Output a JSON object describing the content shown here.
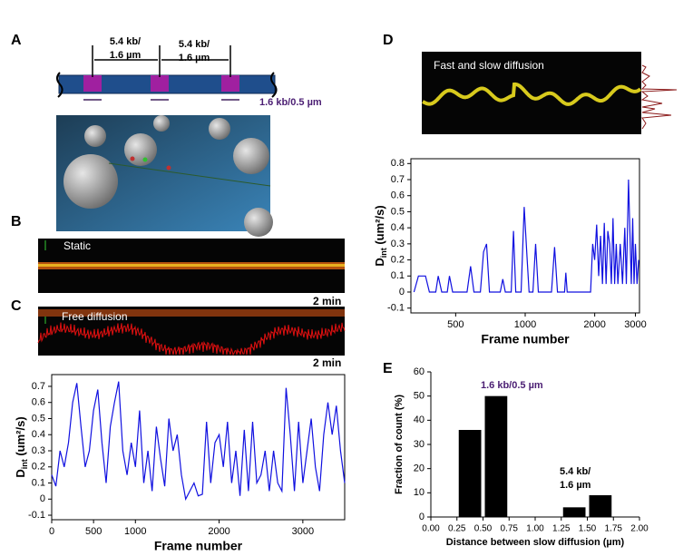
{
  "panels": {
    "labels": [
      "A",
      "B",
      "C",
      "D",
      "E"
    ]
  },
  "diagram": {
    "spacing_labels": [
      [
        "5.4 kb/",
        "1.6 µm"
      ],
      [
        "5.4 kb/",
        "1.6 µm"
      ]
    ],
    "site_label": "1.6 kb/0.5 µm"
  },
  "kymographs": {
    "static": "Static",
    "free": "Free diffusion",
    "fast_slow": "Fast and slow diffusion",
    "scale_b": "2 min",
    "scale_c": "2 min"
  },
  "chart_data": [
    {
      "type": "line",
      "color": "#1010e0",
      "frame": true,
      "xlabel": "Frame number",
      "ylabel": "D",
      "ylabel_sub": "int",
      "ylabel_unit": " (um²/s)",
      "xlim": [
        0,
        3500
      ],
      "xticks": [
        0,
        500,
        1000,
        2000,
        3000
      ],
      "ylim": [
        -0.128,
        0.773
      ],
      "yticks": [
        -0.1,
        0,
        0.1,
        0.2,
        0.3,
        0.4,
        0.5,
        0.6,
        0.7
      ],
      "x": [
        0,
        50,
        100,
        150,
        200,
        250,
        300,
        350,
        400,
        450,
        500,
        550,
        600,
        650,
        700,
        750,
        800,
        850,
        900,
        950,
        1000,
        1050,
        1100,
        1150,
        1200,
        1250,
        1300,
        1350,
        1400,
        1450,
        1500,
        1550,
        1600,
        1650,
        1700,
        1750,
        1800,
        1850,
        1900,
        1950,
        2000,
        2050,
        2100,
        2150,
        2200,
        2250,
        2300,
        2350,
        2400,
        2450,
        2500,
        2550,
        2600,
        2650,
        2700,
        2750,
        2800,
        2850,
        2900,
        2950,
        3000,
        3050,
        3100,
        3150,
        3200,
        3250,
        3300,
        3350,
        3400,
        3450,
        3500
      ],
      "values": [
        0.15,
        0.08,
        0.3,
        0.2,
        0.35,
        0.6,
        0.72,
        0.45,
        0.2,
        0.3,
        0.55,
        0.68,
        0.35,
        0.1,
        0.45,
        0.6,
        0.73,
        0.3,
        0.15,
        0.35,
        0.2,
        0.55,
        0.1,
        0.3,
        0.05,
        0.45,
        0.25,
        0.08,
        0.5,
        0.3,
        0.4,
        0.15,
        0.0,
        0.05,
        0.1,
        0.02,
        0.03,
        0.48,
        0.1,
        0.35,
        0.4,
        0.2,
        0.48,
        0.1,
        0.3,
        0.02,
        0.43,
        0.05,
        0.48,
        0.1,
        0.15,
        0.3,
        0.05,
        0.3,
        0.1,
        0.05,
        0.69,
        0.4,
        0.05,
        0.48,
        0.1,
        0.3,
        0.5,
        0.2,
        0.05,
        0.4,
        0.6,
        0.4,
        0.58,
        0.3,
        0.1
      ]
    },
    {
      "type": "line",
      "color": "#1010e0",
      "frame": true,
      "xscale": "log",
      "xlabel": "Frame number",
      "ylabel": "D",
      "ylabel_sub": "int",
      "ylabel_unit": " (um²/s)",
      "xlim": [
        320,
        3125
      ],
      "xticks": [
        500,
        1000,
        2000,
        3000
      ],
      "ylim": [
        -0.13,
        0.83
      ],
      "yticks": [
        -0.1,
        0,
        0.1,
        0.2,
        0.3,
        0.4,
        0.5,
        0.6,
        0.7,
        0.8
      ],
      "x": [
        330,
        345,
        370,
        385,
        410,
        420,
        435,
        460,
        470,
        485,
        560,
        580,
        600,
        640,
        660,
        680,
        700,
        780,
        800,
        820,
        870,
        890,
        910,
        960,
        990,
        1020,
        1040,
        1080,
        1110,
        1140,
        1300,
        1340,
        1380,
        1480,
        1500,
        1520,
        1920,
        1960,
        2000,
        2040,
        2080,
        2120,
        2160,
        2200,
        2240,
        2280,
        2320,
        2360,
        2400,
        2440,
        2480,
        2520,
        2580,
        2640,
        2700,
        2740,
        2800,
        2850,
        2880,
        2920,
        2960,
        3000,
        3050,
        3100
      ],
      "values": [
        0,
        0.1,
        0.1,
        0,
        0,
        0.1,
        0,
        0,
        0.1,
        0,
        0,
        0.16,
        0,
        0,
        0.25,
        0.3,
        0,
        0,
        0.08,
        0,
        0,
        0.38,
        0,
        0,
        0.53,
        0.2,
        0,
        0,
        0.3,
        0,
        0,
        0.28,
        0,
        0,
        0.12,
        0,
        0,
        0.3,
        0.2,
        0.42,
        0.1,
        0.35,
        0.05,
        0.43,
        0.05,
        0.38,
        0.3,
        0.05,
        0.46,
        0.05,
        0.3,
        0.05,
        0.3,
        0.05,
        0.4,
        0.05,
        0.7,
        0.3,
        0.05,
        0.46,
        0.05,
        0.3,
        0.05,
        0.2
      ]
    },
    {
      "type": "histogram",
      "color": "#000000",
      "frame": false,
      "xlabel": "Distance between slow diffusion (µm)",
      "ylabel": "Fraction of count (%)",
      "bins": [
        0.25,
        0.5,
        0.75,
        1.0,
        1.25,
        1.5,
        1.75
      ],
      "values": [
        36,
        50,
        0,
        0,
        4,
        9
      ],
      "xlim": [
        0,
        2
      ],
      "xticks": [
        {
          "value": 0,
          "label": "0.00"
        },
        {
          "value": 0.25,
          "label": "0.25"
        },
        {
          "value": 0.5,
          "label": "0.50"
        },
        {
          "value": 0.75,
          "label": "0.75"
        },
        {
          "value": 1,
          "label": "1.00"
        },
        {
          "value": 1.25,
          "label": "1.25"
        },
        {
          "value": 1.5,
          "label": "1.50"
        },
        {
          "value": 1.75,
          "label": "1.75"
        },
        {
          "value": 2,
          "label": "2.00"
        }
      ],
      "ylim": [
        0,
        60
      ],
      "yticks": [
        0,
        10,
        20,
        30,
        40,
        50,
        60
      ],
      "annotations": [
        "1.6 kb/0.5 µm",
        "5.4 kb/",
        "1.6 µm"
      ]
    }
  ]
}
